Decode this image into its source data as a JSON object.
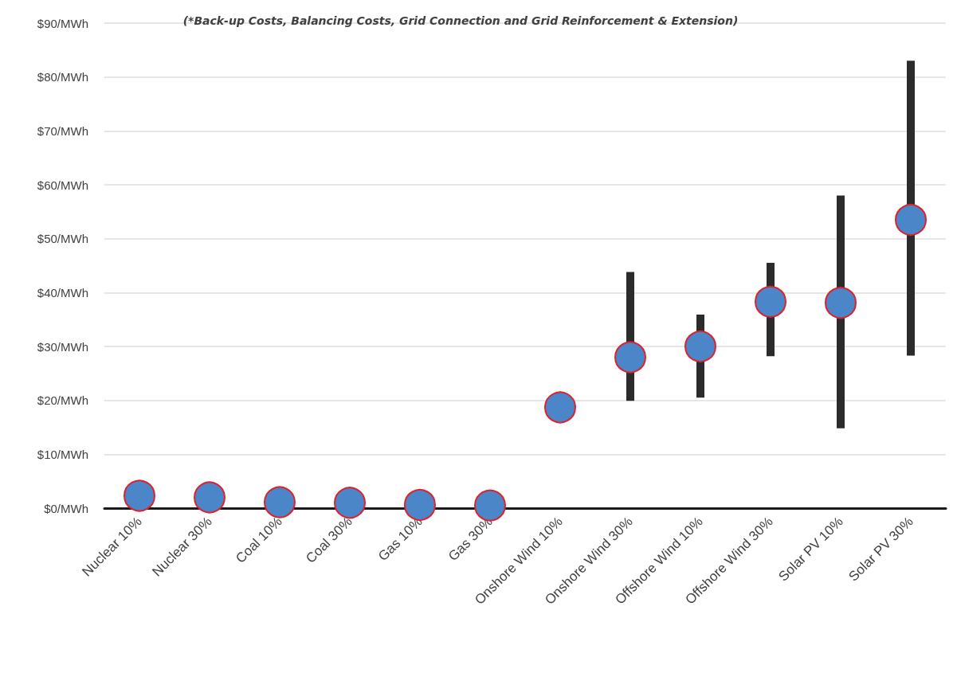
{
  "chart_data": {
    "type": "scatter",
    "subtitle": "(*Back-up Costs, Balancing Costs, Grid Connection and Grid Reinforcement & Extension)",
    "categories": [
      "Nuclear 10%",
      "Nuclear 30%",
      "Coal 10%",
      "Coal 30%",
      "Gas 10%",
      "Gas 30%",
      "Onshore Wind 10%",
      "Onshore Wind 30%",
      "Offshore Wind 10%",
      "Offshore Wind 30%",
      "Solar PV 10%",
      "Solar PV 30%"
    ],
    "values": [
      2.3,
      2.0,
      1.1,
      1.0,
      0.6,
      0.5,
      18.7,
      28,
      30,
      38.3,
      38.1,
      53.5
    ],
    "errors": [
      null,
      null,
      null,
      null,
      null,
      null,
      null,
      [
        19.9,
        43.8
      ],
      [
        20.5,
        35.9
      ],
      [
        28.2,
        45.5
      ],
      [
        14.8,
        58
      ],
      [
        28.3,
        83
      ]
    ],
    "color": "#4a86c8",
    "ylim": [
      0,
      90
    ],
    "yticks": [
      {
        "value": 0,
        "label": "$0/MWh"
      },
      {
        "value": 10,
        "label": "$10/MWh"
      },
      {
        "value": 20,
        "label": "$20/MWh"
      },
      {
        "value": 30,
        "label": "$30/MWh"
      },
      {
        "value": 40,
        "label": "$40/MWh"
      },
      {
        "value": 50,
        "label": "$50/MWh"
      },
      {
        "value": 60,
        "label": "$60/MWh"
      },
      {
        "value": 70,
        "label": "$70/MWh"
      },
      {
        "value": 80,
        "label": "$80/MWh"
      },
      {
        "value": 90,
        "label": "$90/MWh"
      }
    ],
    "grid": "y",
    "marker": "circle"
  }
}
